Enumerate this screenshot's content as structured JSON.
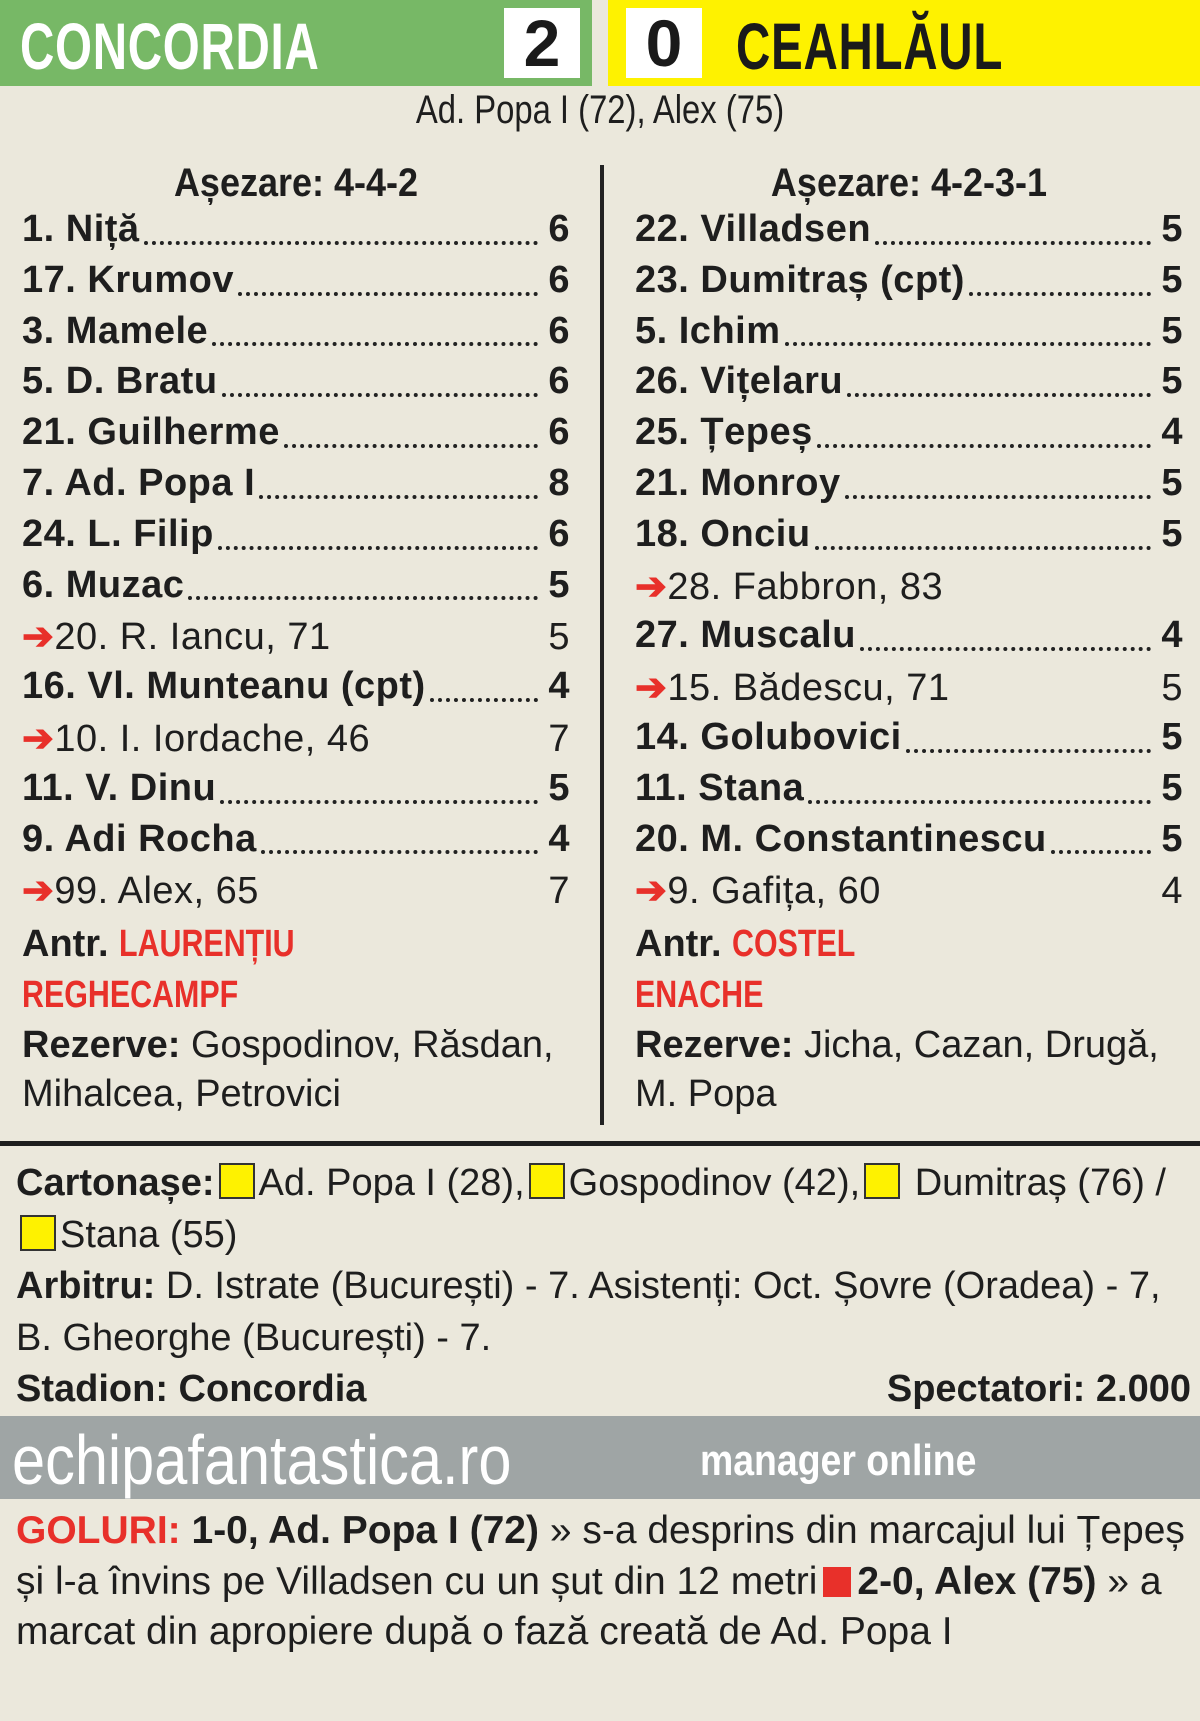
{
  "header": {
    "home_team": "CONCORDIA",
    "home_score": "2",
    "away_score": "0",
    "away_team": "CEAHLĂUL",
    "scorers": "Ad. Popa I (72), Alex (75)"
  },
  "colors": {
    "home": "#77b866",
    "away": "#fef200",
    "accent": "#e8302a",
    "banner": "#9fa5a5"
  },
  "home": {
    "formation": "Așezare: 4-4-2",
    "players": [
      {
        "name": "1. Niță",
        "rating": "6",
        "sub": false
      },
      {
        "name": "17. Krumov",
        "rating": "6",
        "sub": false
      },
      {
        "name": "3. Mamele",
        "rating": "6",
        "sub": false
      },
      {
        "name": "5. D. Bratu",
        "rating": "6",
        "sub": false
      },
      {
        "name": "21. Guilherme",
        "rating": "6",
        "sub": false
      },
      {
        "name": "7. Ad. Popa I",
        "rating": "8",
        "sub": false
      },
      {
        "name": "24. L. Filip",
        "rating": "6",
        "sub": false
      },
      {
        "name": "6. Muzac",
        "rating": "5",
        "sub": false
      },
      {
        "name": "20. R. Iancu, 71",
        "rating": "5",
        "sub": true
      },
      {
        "name": "16. Vl. Munteanu (cpt)",
        "rating": "4",
        "sub": false
      },
      {
        "name": "10. I. Iordache, 46",
        "rating": "7",
        "sub": true
      },
      {
        "name": "11. V. Dinu",
        "rating": "5",
        "sub": false
      },
      {
        "name": "9. Adi Rocha",
        "rating": "4",
        "sub": false
      },
      {
        "name": "99. Alex, 65",
        "rating": "7",
        "sub": true
      }
    ],
    "coach_label": "Antr.",
    "coach_first": "LAURENȚIU",
    "coach_last": "REGHECAMPF",
    "reserves_label": "Rezerve:",
    "reserves": "Gospodinov, Răsdan, Mihalcea, Petrovici"
  },
  "away": {
    "formation": "Așezare: 4-2-3-1",
    "players": [
      {
        "name": "22. Villadsen",
        "rating": "5",
        "sub": false
      },
      {
        "name": "23. Dumitraș (cpt)",
        "rating": "5",
        "sub": false
      },
      {
        "name": "5. Ichim",
        "rating": "5",
        "sub": false
      },
      {
        "name": "26. Vițelaru",
        "rating": "5",
        "sub": false
      },
      {
        "name": "25. Țepeș",
        "rating": "4",
        "sub": false
      },
      {
        "name": "21. Monroy",
        "rating": "5",
        "sub": false
      },
      {
        "name": "18. Onciu",
        "rating": "5",
        "sub": false
      },
      {
        "name": "28. Fabbron, 83",
        "rating": "",
        "sub": true
      },
      {
        "name": "27. Muscalu",
        "rating": "4",
        "sub": false
      },
      {
        "name": "15. Bădescu, 71",
        "rating": "5",
        "sub": true
      },
      {
        "name": "14. Golubovici",
        "rating": "5",
        "sub": false
      },
      {
        "name": "11. Stana",
        "rating": "5",
        "sub": false
      },
      {
        "name": "20. M. Constantinescu",
        "rating": "5",
        "sub": false
      },
      {
        "name": "9. Gafița, 60",
        "rating": "4",
        "sub": true
      }
    ],
    "coach_label": "Antr.",
    "coach_first": "COSTEL",
    "coach_last": "ENACHE",
    "reserves_label": "Rezerve:",
    "reserves": "Jicha, Cazan, Drugă, M. Popa"
  },
  "info": {
    "cards_label": "Cartonașe:",
    "card1": "Ad. Popa I (28),",
    "card2": "Gospodinov (42),",
    "card3": "Dumitraș (76) /",
    "card4": "Stana (55)",
    "referee_label": "Arbitru:",
    "referee": "D. Istrate (București) - 7. Asistenți: Oct. Șovre (Oradea) - 7, B. Gheorghe (București) - 7.",
    "stadium": "Stadion: Concordia",
    "spectators": "Spectatori: 2.000"
  },
  "banner": {
    "site": "echipafantastica.ro",
    "tagline": "manager online"
  },
  "goals": {
    "label": "GOLURI:",
    "g1": "1-0, Ad. Popa I (72)",
    "g1_text": "» s-a desprins din marcajul lui Țepeș și l-a învins pe Villadsen cu un șut din 12 metri",
    "g2": "2-0, Alex (75)",
    "g2_text": "» a marcat din apropiere după o fază creată de Ad. Popa I"
  }
}
